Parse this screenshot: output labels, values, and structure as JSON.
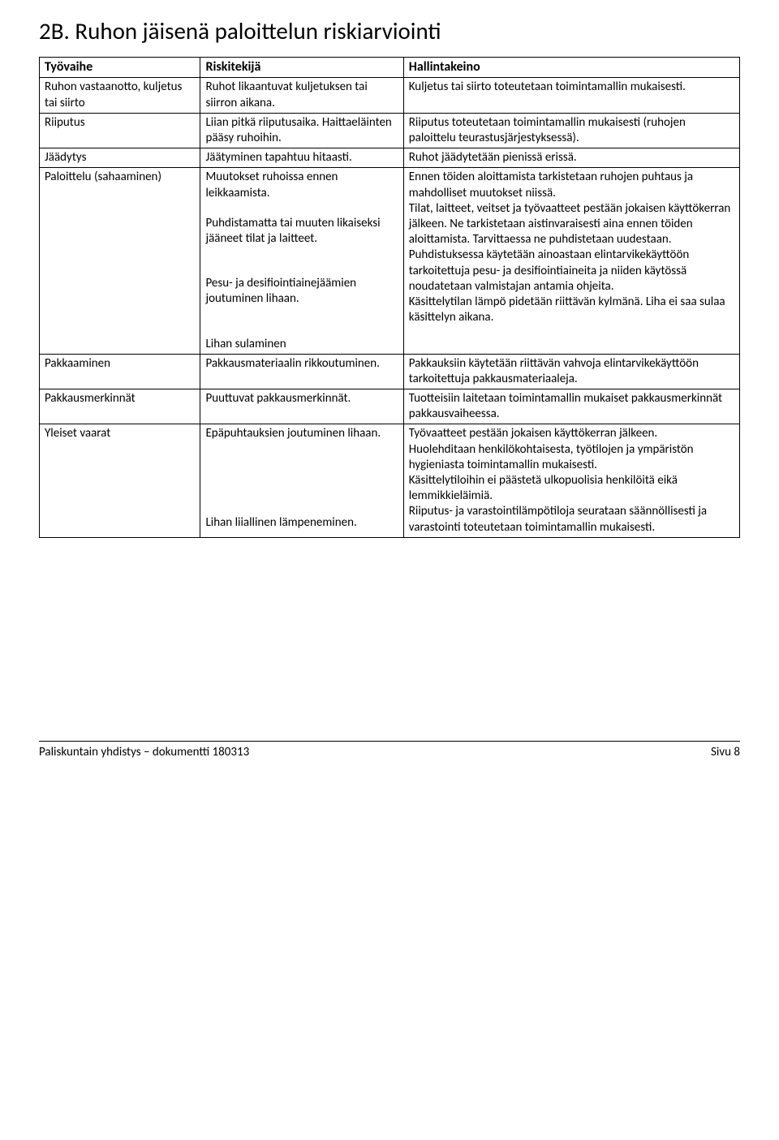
{
  "heading": "2B. Ruhon jäisenä paloittelun riskiarviointi",
  "columns": [
    "Työvaihe",
    "Riskitekijä",
    "Hallintakeino"
  ],
  "rows": [
    {
      "c1": "Ruhon vastaanotto, kuljetus tai siirto",
      "c2": "Ruhot likaantuvat kuljetuksen tai siirron aikana.",
      "c3": "Kuljetus tai siirto toteutetaan toimintamallin mukaisesti."
    },
    {
      "c1": "Riiputus",
      "c2": "Liian pitkä riiputusaika. Haittaeläinten pääsy ruhoihin.",
      "c3": "Riiputus toteutetaan toimintamallin mukaisesti (ruhojen paloittelu teurastusjärjestyksessä)."
    },
    {
      "c1": "Jäädytys",
      "c2": "Jäätyminen tapahtuu hitaasti.",
      "c3": "Ruhot jäädytetään pienissä erissä."
    },
    {
      "c1": "Paloittelu (sahaaminen)",
      "c2a": "Muutokset ruhoissa ennen leikkaamista.",
      "c2b": "Puhdistamatta tai muuten likaiseksi jääneet tilat ja laitteet.",
      "c2c": "Pesu- ja desifiointiainejäämien joutuminen lihaan.",
      "c2d": "Lihan sulaminen",
      "c3a": "Ennen töiden aloittamista tarkistetaan ruhojen puhtaus ja mahdolliset muutokset niissä.",
      "c3b": "Tilat, laitteet, veitset ja työvaatteet pestään jokaisen käyttökerran jälkeen. Ne tarkistetaan aistinvaraisesti aina ennen töiden aloittamista. Tarvittaessa ne puhdistetaan uudestaan.",
      "c3c": "Puhdistuksessa käytetään ainoastaan elintarvikekäyttöön tarkoitettuja pesu- ja desifiointiaineita ja niiden käytössä noudatetaan valmistajan antamia ohjeita.",
      "c3d": "Käsittelytilan lämpö pidetään riittävän kylmänä. Liha ei saa sulaa käsittelyn aikana."
    },
    {
      "c1": "Pakkaaminen",
      "c2": "Pakkausmateriaalin rikkoutuminen.",
      "c3": "Pakkauksiin käytetään riittävän vahvoja elintarvikekäyttöön tarkoitettuja pakkausmateriaaleja."
    },
    {
      "c1": "Pakkausmerkinnät",
      "c2": "Puuttuvat pakkausmerkinnät.",
      "c3": "Tuotteisiin laitetaan toimintamallin mukaiset pakkausmerkinnät pakkausvaiheessa."
    },
    {
      "c1": "Yleiset vaarat",
      "c2a": "Epäpuhtauksien joutuminen lihaan.",
      "c2b": "Lihan liiallinen lämpeneminen.",
      "c3a": "Työvaatteet pestään jokaisen käyttökerran jälkeen.",
      "c3b": "Huolehditaan henkilökohtaisesta, työtilojen ja ympäristön hygieniasta toimintamallin mukaisesti.",
      "c3c": "Käsittelytiloihin ei päästetä ulkopuolisia henkilöitä eikä lemmikkieläimiä.",
      "c3d": "Riiputus- ja varastointilämpötiloja seurataan säännöllisesti ja varastointi toteutetaan toimintamallin mukaisesti."
    }
  ],
  "footer_left": "Paliskuntain yhdistys – dokumentti 180313",
  "footer_right": "Sivu 8"
}
